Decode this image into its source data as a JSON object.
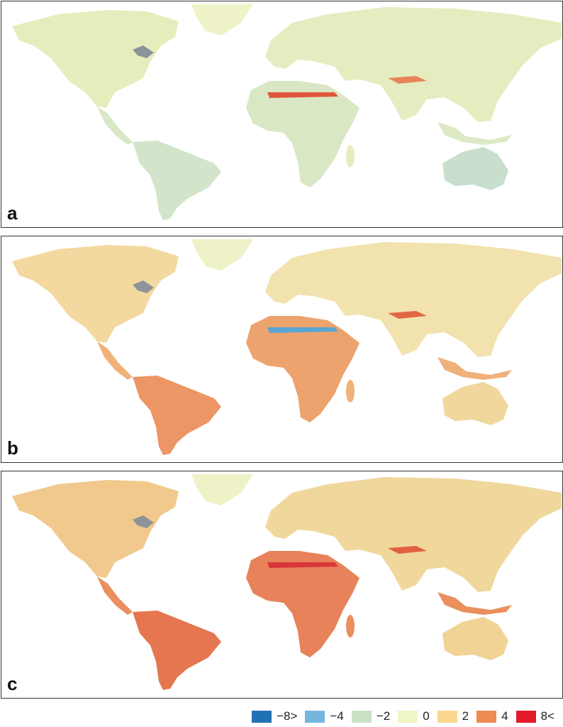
{
  "panels": [
    {
      "label": "a",
      "fills": {
        "north-america": "#e6edbd",
        "greenland": "#eef2c6",
        "central-america": "#d8e8c6",
        "south-america": "#d2e4c9",
        "eurasia": "#e5edc0",
        "africa": "#d9e7c4",
        "madagascar": "#e6edbd",
        "australia": "#c9dfcd",
        "indonesia": "#dce9c5",
        "sahel-band": "#e2563a",
        "himalaya-band": "#e8845a",
        "great-lakes": "#8d9399"
      }
    },
    {
      "label": "b",
      "fills": {
        "north-america": "#f3d9a0",
        "greenland": "#eef2c6",
        "central-america": "#f0b27a",
        "south-america": "#ec9565",
        "eurasia": "#f1e2ae",
        "africa": "#eda36e",
        "madagascar": "#f0b27a",
        "australia": "#f1d79d",
        "indonesia": "#efb07a",
        "sahel-band": "#5aa6d3",
        "himalaya-band": "#e26844",
        "great-lakes": "#8d9399"
      }
    },
    {
      "label": "c",
      "fills": {
        "north-america": "#f1c98c",
        "greenland": "#eef2c6",
        "central-america": "#ea8f5d",
        "south-america": "#e57650",
        "eurasia": "#f0d79c",
        "africa": "#e7825a",
        "madagascar": "#ea8f5d",
        "australia": "#f1d395",
        "indonesia": "#ea8f5d",
        "sahel-band": "#d9363a",
        "himalaya-band": "#e06040",
        "great-lakes": "#8d9399"
      }
    }
  ],
  "legend": [
    {
      "label": "−8>",
      "color": "#2171b5"
    },
    {
      "label": "−4",
      "color": "#74b6dc"
    },
    {
      "label": "−2",
      "color": "#c9e1c5"
    },
    {
      "label": "0",
      "color": "#eff5c4"
    },
    {
      "label": "2",
      "color": "#fbd68f"
    },
    {
      "label": "4",
      "color": "#ef8a55"
    },
    {
      "label": "8<",
      "color": "#e31a2a"
    }
  ]
}
